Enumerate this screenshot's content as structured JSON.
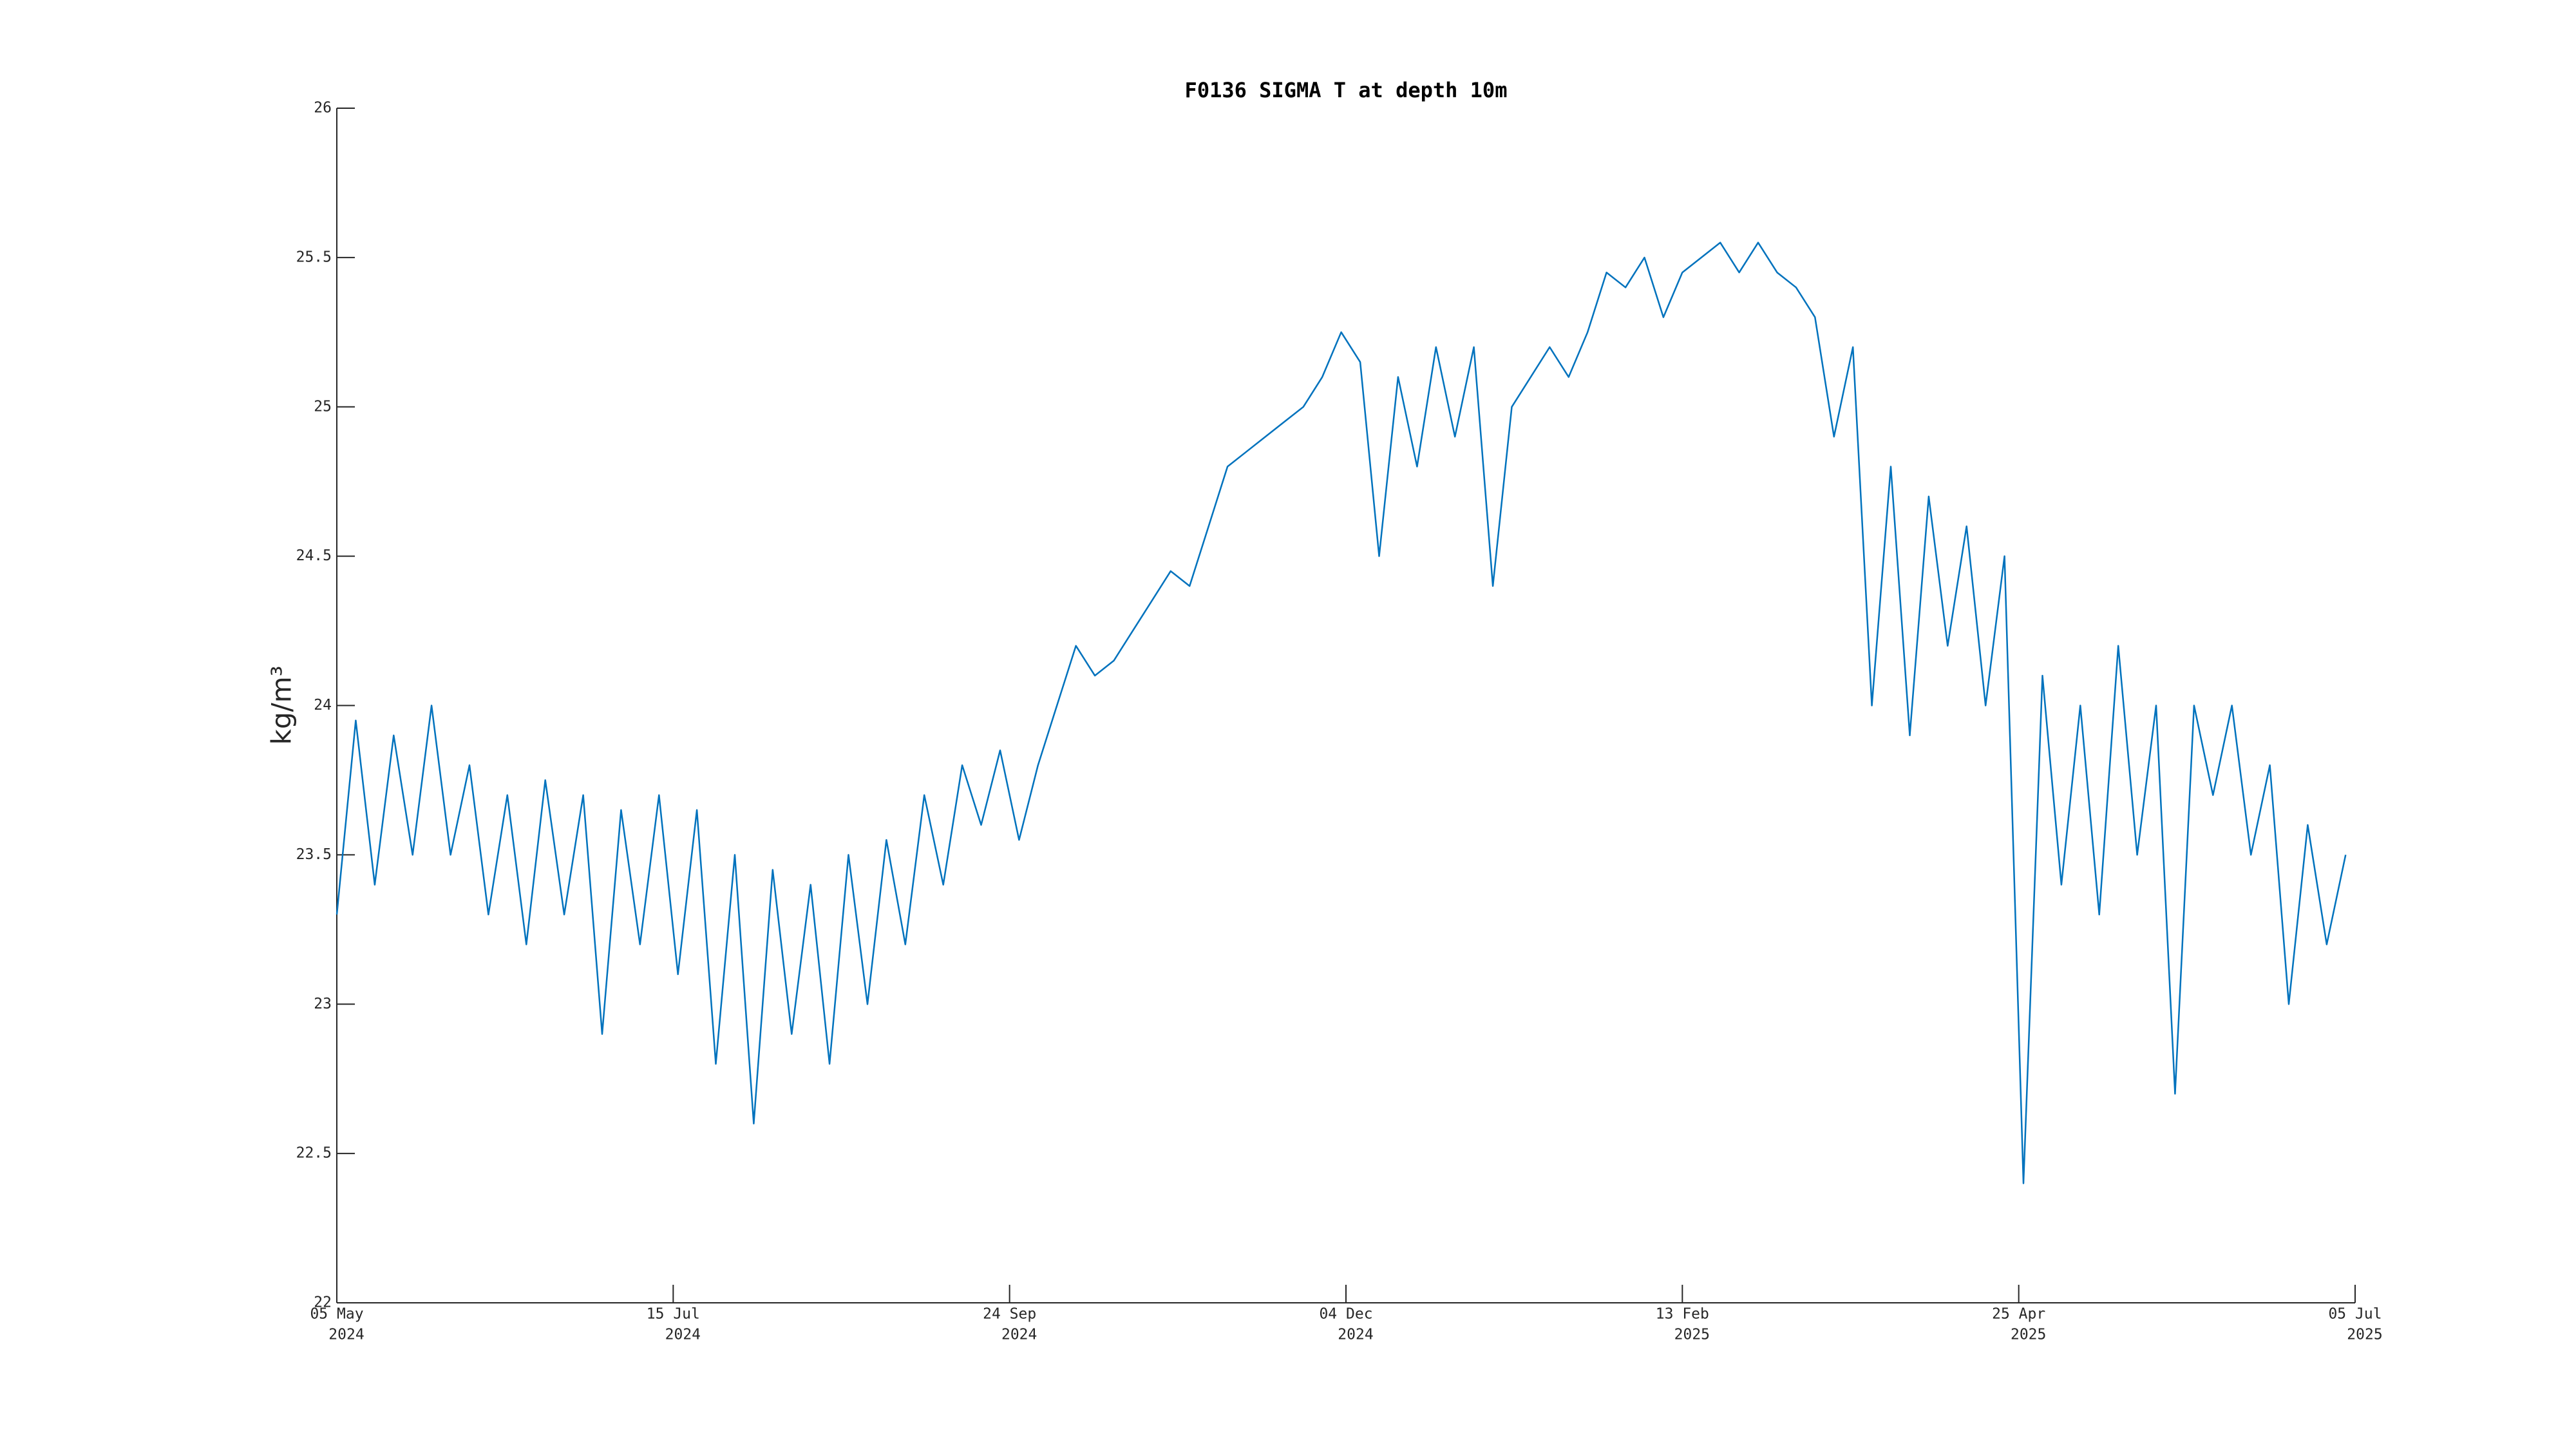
{
  "chart_data": {
    "type": "line",
    "title": "F0136 SIGMA T at depth 10m",
    "y_label": "kg/m³",
    "x": [
      "2024-05-05",
      "2024-05-09",
      "2024-05-13",
      "2024-05-17",
      "2024-05-21",
      "2024-05-25",
      "2024-05-29",
      "2024-06-02",
      "2024-06-06",
      "2024-06-10",
      "2024-06-14",
      "2024-06-18",
      "2024-06-22",
      "2024-06-26",
      "2024-06-30",
      "2024-07-04",
      "2024-07-08",
      "2024-07-12",
      "2024-07-16",
      "2024-07-20",
      "2024-07-24",
      "2024-07-28",
      "2024-08-01",
      "2024-08-05",
      "2024-08-09",
      "2024-08-13",
      "2024-08-17",
      "2024-08-21",
      "2024-08-25",
      "2024-08-29",
      "2024-09-02",
      "2024-09-06",
      "2024-09-10",
      "2024-09-14",
      "2024-09-18",
      "2024-09-22",
      "2024-09-26",
      "2024-09-30",
      "2024-10-04",
      "2024-10-08",
      "2024-10-12",
      "2024-10-16",
      "2024-10-20",
      "2024-10-24",
      "2024-10-28",
      "2024-11-01",
      "2024-11-05",
      "2024-11-09",
      "2024-11-13",
      "2024-11-17",
      "2024-11-21",
      "2024-11-25",
      "2024-11-29",
      "2024-12-03",
      "2024-12-07",
      "2024-12-11",
      "2024-12-15",
      "2024-12-19",
      "2024-12-23",
      "2024-12-27",
      "2024-12-31",
      "2025-01-04",
      "2025-01-08",
      "2025-01-12",
      "2025-01-16",
      "2025-01-20",
      "2025-01-24",
      "2025-01-28",
      "2025-02-01",
      "2025-02-05",
      "2025-02-09",
      "2025-02-13",
      "2025-02-17",
      "2025-02-21",
      "2025-02-25",
      "2025-03-01",
      "2025-03-05",
      "2025-03-09",
      "2025-03-13",
      "2025-03-17",
      "2025-03-21",
      "2025-03-25",
      "2025-03-29",
      "2025-04-02",
      "2025-04-06",
      "2025-04-10",
      "2025-04-14",
      "2025-04-18",
      "2025-04-22",
      "2025-04-26",
      "2025-04-30",
      "2025-05-04",
      "2025-05-08",
      "2025-05-12",
      "2025-05-16",
      "2025-05-20",
      "2025-05-24",
      "2025-05-28",
      "2025-06-01",
      "2025-06-05",
      "2025-06-09",
      "2025-06-13",
      "2025-06-17",
      "2025-06-21",
      "2025-06-25",
      "2025-06-29",
      "2025-07-03"
    ],
    "series": [
      {
        "name": "SIGMA T",
        "color": "#0072bd",
        "values": [
          23.3,
          23.95,
          23.4,
          23.9,
          23.5,
          24.0,
          23.5,
          23.8,
          23.3,
          23.7,
          23.2,
          23.75,
          23.3,
          23.7,
          22.9,
          23.65,
          23.2,
          23.7,
          23.1,
          23.65,
          22.8,
          23.5,
          22.6,
          23.45,
          22.9,
          23.4,
          22.8,
          23.5,
          23.0,
          23.55,
          23.2,
          23.7,
          23.4,
          23.8,
          23.6,
          23.85,
          23.55,
          23.8,
          24.0,
          24.2,
          24.1,
          24.15,
          24.25,
          24.35,
          24.45,
          24.4,
          24.6,
          24.8,
          24.85,
          24.9,
          24.95,
          25.0,
          25.1,
          25.25,
          25.15,
          24.5,
          25.1,
          24.8,
          25.2,
          24.9,
          25.2,
          24.4,
          25.0,
          25.1,
          25.2,
          25.1,
          25.25,
          25.45,
          25.4,
          25.5,
          25.3,
          25.45,
          25.5,
          25.55,
          25.45,
          25.55,
          25.45,
          25.4,
          25.3,
          24.9,
          25.2,
          24.0,
          24.8,
          23.9,
          24.7,
          24.2,
          24.6,
          24.0,
          24.5,
          22.4,
          24.1,
          23.4,
          24.0,
          23.3,
          24.2,
          23.5,
          24.0,
          22.7,
          24.0,
          23.7,
          24.0,
          23.5,
          23.8,
          23.0,
          23.6,
          23.2,
          23.5
        ]
      }
    ],
    "xlim": [
      "2024-05-05",
      "2025-07-05"
    ],
    "xticks": [
      {
        "value": "2024-05-05",
        "label": [
          "05 May",
          "2024"
        ]
      },
      {
        "value": "2024-07-15",
        "label": [
          "15 Jul",
          "2024"
        ]
      },
      {
        "value": "2024-09-24",
        "label": [
          "24 Sep",
          "2024"
        ]
      },
      {
        "value": "2024-12-04",
        "label": [
          "04 Dec",
          "2024"
        ]
      },
      {
        "value": "2025-02-13",
        "label": [
          "13 Feb",
          "2025"
        ]
      },
      {
        "value": "2025-04-25",
        "label": [
          "25 Apr",
          "2025"
        ]
      },
      {
        "value": "2025-07-05",
        "label": [
          "05 Jul",
          "2025"
        ]
      }
    ],
    "ylim": [
      22,
      26
    ],
    "yticks": [
      22,
      22.5,
      23,
      23.5,
      24,
      24.5,
      25,
      25.5,
      26
    ]
  }
}
